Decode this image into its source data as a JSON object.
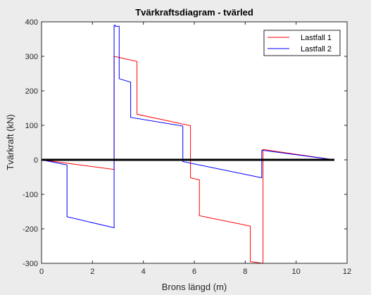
{
  "chart_data": {
    "type": "line",
    "title": "Tvärkraftsdiagram - tvärled",
    "xlabel": "Brons längd (m)",
    "ylabel": "Tvärkraft (kN)",
    "xlim": [
      0,
      12
    ],
    "ylim": [
      -300,
      400
    ],
    "xticks": [
      "0",
      "2",
      "4",
      "6",
      "8",
      "10",
      "12"
    ],
    "yticks": [
      "400",
      "300",
      "200",
      "100",
      "0",
      "-100",
      "-200",
      "-300"
    ],
    "grid": false,
    "legend_position": "top-right",
    "zero_line": true,
    "series": [
      {
        "name": "Lastfall 1",
        "color": "#ff0000",
        "x": [
          0,
          2.85,
          2.85,
          3.75,
          3.75,
          5.85,
          5.85,
          6.2,
          6.2,
          8.2,
          8.2,
          8.7,
          8.7,
          11.5
        ],
        "y": [
          0,
          -28,
          300,
          285,
          132,
          99,
          -52,
          -58,
          -162,
          -192,
          -295,
          -300,
          30,
          0
        ]
      },
      {
        "name": "Lastfall 2",
        "color": "#0000ff",
        "x": [
          0,
          1.0,
          1.0,
          2.85,
          2.85,
          2.9,
          2.9,
          3.05,
          3.05,
          3.5,
          3.5,
          5.55,
          5.55,
          8.65,
          8.65,
          11.5
        ],
        "y": [
          0,
          -15,
          -165,
          -197,
          390,
          390,
          387,
          387,
          235,
          225,
          123,
          98,
          -5,
          -52,
          28,
          0
        ]
      }
    ]
  }
}
